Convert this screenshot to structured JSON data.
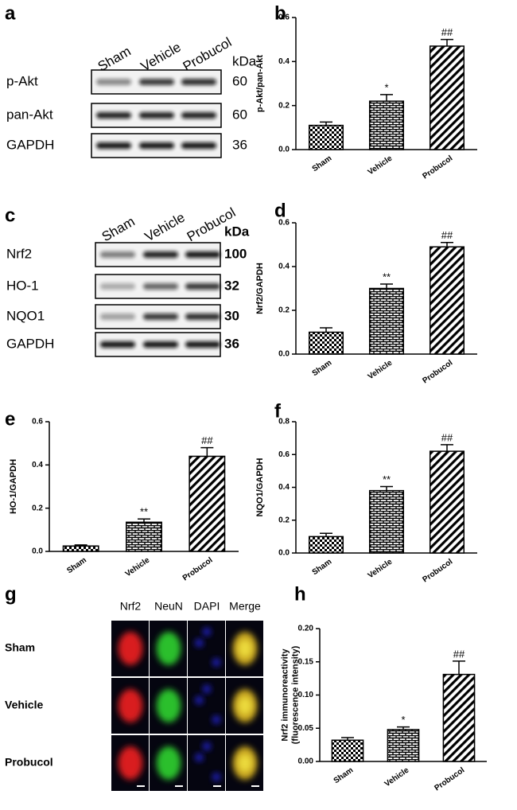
{
  "blot_a": {
    "label": "a",
    "lanes": [
      "Sham",
      "Vehicle",
      "Probucol"
    ],
    "unit": "kDa",
    "rows": [
      {
        "name": "p-Akt",
        "kda": 60
      },
      {
        "name": "pan-Akt",
        "kda": 60
      },
      {
        "name": "GAPDH",
        "kda": 36
      }
    ]
  },
  "blot_c": {
    "label": "c",
    "lanes": [
      "Sham",
      "Vehicle",
      "Probucol"
    ],
    "unit": "kDa",
    "rows": [
      {
        "name": "Nrf2",
        "kda": 100
      },
      {
        "name": "HO-1",
        "kda": 32
      },
      {
        "name": "NQO1",
        "kda": 30
      },
      {
        "name": "GAPDH",
        "kda": 36
      }
    ]
  },
  "micrographs": {
    "label": "g",
    "channels": [
      "Nrf2",
      "NeuN",
      "DAPI",
      "Merge"
    ],
    "groups": [
      "Sham",
      "Vehicle",
      "Probucol"
    ]
  },
  "chart_data": [
    {
      "type": "bar",
      "label": "b",
      "ylabel": "p-Akt/pan-Akt",
      "categories": [
        "Sham",
        "Vehicle",
        "Probucol"
      ],
      "values": [
        0.11,
        0.22,
        0.47
      ],
      "errors": [
        0.015,
        0.03,
        0.03
      ],
      "annotations": [
        null,
        "*",
        "##"
      ],
      "patterns": [
        "checker",
        "brick",
        "hatch"
      ],
      "color": "#000000",
      "ylim": [
        0,
        0.6
      ],
      "yticks": [
        {
          "value": 0,
          "label": "0.0"
        },
        0.2,
        0.4,
        0.6
      ]
    },
    {
      "type": "bar",
      "label": "d",
      "ylabel": "Nrf2/GAPDH",
      "categories": [
        "Sham",
        "Vehicle",
        "Probucol"
      ],
      "values": [
        0.1,
        0.3,
        0.49
      ],
      "errors": [
        0.02,
        0.02,
        0.02
      ],
      "annotations": [
        null,
        "**",
        "##"
      ],
      "patterns": [
        "checker",
        "brick",
        "hatch"
      ],
      "color": "#000000",
      "ylim": [
        0,
        0.6
      ],
      "yticks": [
        {
          "value": 0,
          "label": "0.0"
        },
        0.2,
        0.4,
        0.6
      ]
    },
    {
      "type": "bar",
      "label": "e",
      "ylabel": "HO-1/GAPDH",
      "categories": [
        "Sham",
        "Vehicle",
        "Probucol"
      ],
      "values": [
        0.025,
        0.135,
        0.44
      ],
      "errors": [
        0.005,
        0.015,
        0.04
      ],
      "annotations": [
        null,
        "**",
        "##"
      ],
      "patterns": [
        "checker",
        "brick",
        "hatch"
      ],
      "color": "#000000",
      "ylim": [
        0,
        0.6
      ],
      "yticks": [
        {
          "value": 0,
          "label": "0.0"
        },
        0.2,
        0.4,
        0.6
      ]
    },
    {
      "type": "bar",
      "label": "f",
      "ylabel": "NQO1/GAPDH",
      "categories": [
        "Sham",
        "Vehicle",
        "Probucol"
      ],
      "values": [
        0.1,
        0.38,
        0.62
      ],
      "errors": [
        0.02,
        0.025,
        0.04
      ],
      "annotations": [
        null,
        "**",
        "##"
      ],
      "patterns": [
        "checker",
        "brick",
        "hatch"
      ],
      "color": "#000000",
      "ylim": [
        0,
        0.8
      ],
      "yticks": [
        {
          "value": 0,
          "label": "0.0"
        },
        0.2,
        0.4,
        0.6,
        0.8
      ]
    },
    {
      "type": "bar",
      "label": "h",
      "ylabel": [
        "Nrf2 immunoreactivity",
        "(fluorescence intensity)"
      ],
      "categories": [
        "Sham",
        "Vehicle",
        "Probucol"
      ],
      "values": [
        0.032,
        0.048,
        0.131
      ],
      "errors": [
        0.004,
        0.004,
        0.02
      ],
      "annotations": [
        null,
        "*",
        "##"
      ],
      "patterns": [
        "checker",
        "brick",
        "hatch"
      ],
      "color": "#000000",
      "ylim": [
        0,
        0.2
      ],
      "yticks": [
        {
          "value": 0,
          "label": "0.00"
        },
        0.05,
        {
          "value": 0.1,
          "label": "0.10"
        },
        0.15,
        {
          "value": 0.2,
          "label": "0.20"
        }
      ]
    }
  ]
}
